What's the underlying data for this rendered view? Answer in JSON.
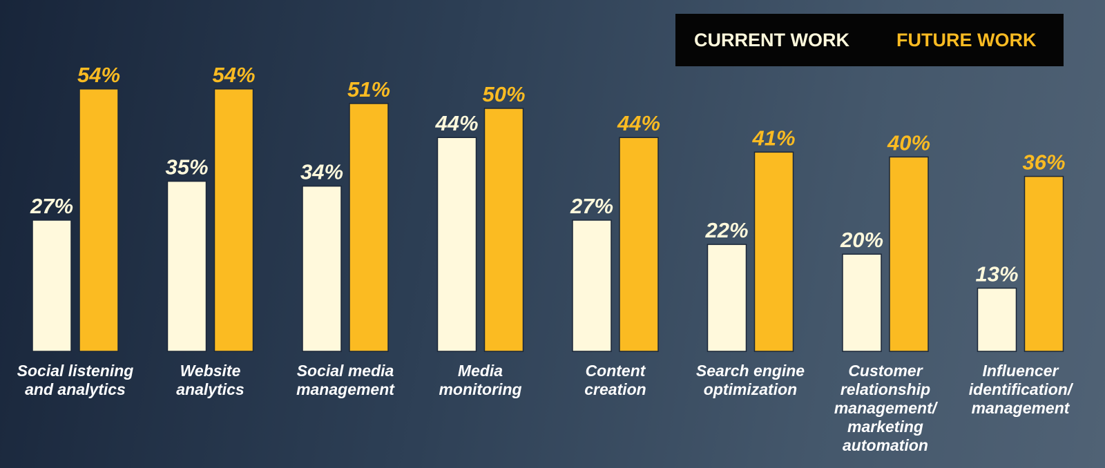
{
  "chart_data": {
    "type": "bar",
    "categories": [
      "Social listening and analytics",
      "Website analytics",
      "Social media management",
      "Media monitoring",
      "Content creation",
      "Search engine optimization",
      "Customer relationship management/ marketing automation",
      "Influencer identification/ management"
    ],
    "series": [
      {
        "name": "CURRENT WORK",
        "color": "#fff9dc",
        "values": [
          27,
          35,
          34,
          44,
          27,
          22,
          20,
          13
        ],
        "value_labels": [
          "27%",
          "35%",
          "34%",
          "44%",
          "27%",
          "22%",
          "20%",
          "13%"
        ]
      },
      {
        "name": "FUTURE WORK",
        "color": "#fbbb22",
        "values": [
          54,
          54,
          51,
          50,
          44,
          41,
          40,
          36
        ],
        "value_labels": [
          "54%",
          "54%",
          "51%",
          "50%",
          "44%",
          "41%",
          "40%",
          "36%"
        ]
      }
    ]
  }
}
